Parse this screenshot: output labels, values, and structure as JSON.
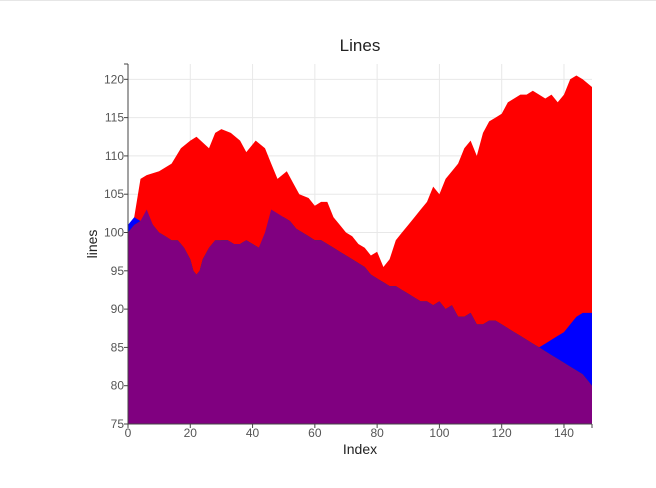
{
  "chart_data": {
    "type": "area",
    "title": "Lines",
    "xlabel": "Index",
    "ylabel": "lines",
    "xlim": [
      0,
      149
    ],
    "ylim": [
      75,
      122
    ],
    "xticks": [
      0,
      20,
      40,
      60,
      80,
      100,
      120,
      140
    ],
    "yticks": [
      75,
      80,
      85,
      90,
      95,
      100,
      105,
      110,
      115,
      120
    ],
    "grid": true,
    "legend": "none",
    "series": [
      {
        "color": "#ff0000",
        "points": [
          [
            0,
            100
          ],
          [
            2,
            102
          ],
          [
            4,
            107
          ],
          [
            6,
            107.5
          ],
          [
            10,
            108
          ],
          [
            14,
            109
          ],
          [
            17,
            111
          ],
          [
            20,
            112
          ],
          [
            22,
            112.5
          ],
          [
            26,
            111
          ],
          [
            28,
            113
          ],
          [
            30,
            113.5
          ],
          [
            33,
            113
          ],
          [
            36,
            112
          ],
          [
            38,
            110.5
          ],
          [
            41,
            112
          ],
          [
            44,
            111
          ],
          [
            46,
            109
          ],
          [
            48,
            107
          ],
          [
            51,
            108
          ],
          [
            53,
            106.5
          ],
          [
            55,
            105
          ],
          [
            58,
            104.5
          ],
          [
            60,
            103.5
          ],
          [
            62,
            104
          ],
          [
            64,
            104
          ],
          [
            66,
            102
          ],
          [
            68,
            101
          ],
          [
            70,
            100
          ],
          [
            72,
            99.5
          ],
          [
            74,
            98.5
          ],
          [
            76,
            98
          ],
          [
            78,
            97
          ],
          [
            80,
            97.5
          ],
          [
            82,
            95.5
          ],
          [
            84,
            96.5
          ],
          [
            86,
            99
          ],
          [
            88,
            100
          ],
          [
            90,
            101
          ],
          [
            92,
            102
          ],
          [
            94,
            103
          ],
          [
            96,
            104
          ],
          [
            98,
            106
          ],
          [
            100,
            105
          ],
          [
            102,
            107
          ],
          [
            104,
            108
          ],
          [
            106,
            109
          ],
          [
            108,
            111
          ],
          [
            110,
            112
          ],
          [
            112,
            110
          ],
          [
            114,
            113
          ],
          [
            116,
            114.5
          ],
          [
            118,
            115
          ],
          [
            120,
            115.5
          ],
          [
            122,
            117
          ],
          [
            124,
            117.5
          ],
          [
            126,
            118
          ],
          [
            128,
            118
          ],
          [
            130,
            118.5
          ],
          [
            132,
            118
          ],
          [
            134,
            117.5
          ],
          [
            136,
            118
          ],
          [
            138,
            117
          ],
          [
            140,
            118
          ],
          [
            142,
            120
          ],
          [
            144,
            120.5
          ],
          [
            146,
            120
          ],
          [
            149,
            119
          ]
        ]
      },
      {
        "color": "#0000ff",
        "points": [
          [
            0,
            101
          ],
          [
            2,
            102
          ],
          [
            4,
            101.5
          ],
          [
            6,
            102
          ],
          [
            8,
            101
          ],
          [
            10,
            99.5
          ],
          [
            12,
            99
          ],
          [
            14,
            98.5
          ],
          [
            16,
            98.5
          ],
          [
            18,
            97.5
          ],
          [
            20,
            96
          ],
          [
            21,
            94.5
          ],
          [
            22,
            94
          ],
          [
            23,
            94.5
          ],
          [
            24,
            96
          ],
          [
            26,
            97.5
          ],
          [
            28,
            98.5
          ],
          [
            30,
            99
          ],
          [
            32,
            99
          ],
          [
            34,
            98.5
          ],
          [
            36,
            98.5
          ],
          [
            38,
            99
          ],
          [
            40,
            98.5
          ],
          [
            42,
            98
          ],
          [
            44,
            99
          ],
          [
            46,
            101
          ],
          [
            48,
            102
          ],
          [
            50,
            102
          ],
          [
            52,
            101.5
          ],
          [
            54,
            100.5
          ],
          [
            56,
            100
          ],
          [
            58,
            99.5
          ],
          [
            60,
            99
          ],
          [
            62,
            99
          ],
          [
            64,
            98.5
          ],
          [
            66,
            98
          ],
          [
            68,
            97.5
          ],
          [
            70,
            97
          ],
          [
            72,
            96.5
          ],
          [
            74,
            96
          ],
          [
            76,
            95.5
          ],
          [
            78,
            94.5
          ],
          [
            80,
            94
          ],
          [
            82,
            93.5
          ],
          [
            84,
            93
          ],
          [
            86,
            93
          ],
          [
            88,
            92.5
          ],
          [
            90,
            92
          ],
          [
            92,
            91.5
          ],
          [
            94,
            91
          ],
          [
            96,
            91
          ],
          [
            98,
            90.5
          ],
          [
            100,
            91
          ],
          [
            102,
            90
          ],
          [
            104,
            90.5
          ],
          [
            106,
            89
          ],
          [
            108,
            89
          ],
          [
            110,
            89.5
          ],
          [
            112,
            88
          ],
          [
            114,
            88
          ],
          [
            116,
            88.5
          ],
          [
            118,
            88.5
          ],
          [
            120,
            88
          ],
          [
            122,
            87.5
          ],
          [
            124,
            87
          ],
          [
            126,
            86.5
          ],
          [
            128,
            86
          ],
          [
            130,
            85.5
          ],
          [
            132,
            85
          ],
          [
            134,
            85.5
          ],
          [
            136,
            86
          ],
          [
            138,
            86.5
          ],
          [
            140,
            87
          ],
          [
            142,
            88
          ],
          [
            144,
            89
          ],
          [
            146,
            89.5
          ],
          [
            149,
            89.5
          ]
        ]
      },
      {
        "color": "#008000",
        "points": [
          [
            0,
            100
          ],
          [
            2,
            101
          ],
          [
            4,
            101.5
          ],
          [
            6,
            102
          ],
          [
            8,
            101
          ],
          [
            10,
            100
          ],
          [
            12,
            99.5
          ],
          [
            14,
            99
          ],
          [
            16,
            99
          ],
          [
            18,
            98
          ],
          [
            20,
            96.5
          ],
          [
            21,
            95
          ],
          [
            22,
            94.5
          ],
          [
            23,
            95
          ],
          [
            24,
            96.5
          ],
          [
            26,
            98
          ],
          [
            28,
            99
          ],
          [
            30,
            99
          ],
          [
            32,
            99
          ],
          [
            34,
            98.5
          ],
          [
            36,
            98.5
          ],
          [
            38,
            99
          ],
          [
            40,
            98.5
          ],
          [
            42,
            98
          ],
          [
            44,
            99
          ],
          [
            46,
            101
          ],
          [
            48,
            102
          ],
          [
            50,
            102
          ],
          [
            52,
            101.5
          ],
          [
            54,
            100.5
          ],
          [
            56,
            100
          ],
          [
            58,
            99.5
          ],
          [
            60,
            99
          ],
          [
            62,
            99
          ],
          [
            64,
            98.5
          ],
          [
            66,
            98
          ],
          [
            68,
            97.5
          ],
          [
            70,
            97
          ],
          [
            72,
            96.5
          ],
          [
            74,
            96
          ],
          [
            76,
            95.5
          ],
          [
            78,
            94.5
          ],
          [
            80,
            94
          ],
          [
            82,
            93.5
          ],
          [
            84,
            93
          ],
          [
            86,
            93
          ],
          [
            88,
            92.5
          ],
          [
            90,
            92
          ],
          [
            92,
            91.5
          ],
          [
            94,
            91
          ],
          [
            96,
            91
          ],
          [
            98,
            90.5
          ],
          [
            100,
            91
          ],
          [
            102,
            90
          ],
          [
            104,
            90.5
          ],
          [
            106,
            89
          ],
          [
            108,
            89
          ],
          [
            110,
            89.5
          ],
          [
            112,
            88
          ],
          [
            114,
            88
          ],
          [
            116,
            88.5
          ],
          [
            118,
            88.5
          ],
          [
            120,
            88
          ],
          [
            122,
            87.5
          ],
          [
            124,
            87
          ],
          [
            126,
            86.5
          ],
          [
            128,
            86
          ],
          [
            130,
            85.5
          ],
          [
            132,
            85
          ],
          [
            134,
            84.5
          ],
          [
            136,
            84
          ],
          [
            138,
            83.5
          ],
          [
            140,
            83
          ],
          [
            142,
            82.5
          ],
          [
            144,
            82
          ],
          [
            146,
            81.5
          ],
          [
            149,
            80
          ]
        ]
      },
      {
        "color": "#800080",
        "points": [
          [
            0,
            100
          ],
          [
            2,
            101
          ],
          [
            4,
            101.5
          ],
          [
            6,
            103
          ],
          [
            8,
            101
          ],
          [
            10,
            100
          ],
          [
            12,
            99.5
          ],
          [
            14,
            99
          ],
          [
            16,
            99
          ],
          [
            18,
            98
          ],
          [
            20,
            96.5
          ],
          [
            21,
            95
          ],
          [
            22,
            94.5
          ],
          [
            23,
            95
          ],
          [
            24,
            96.5
          ],
          [
            26,
            98
          ],
          [
            28,
            99
          ],
          [
            30,
            99
          ],
          [
            32,
            99
          ],
          [
            34,
            98.5
          ],
          [
            36,
            98.5
          ],
          [
            38,
            99
          ],
          [
            40,
            98.5
          ],
          [
            42,
            98
          ],
          [
            44,
            100
          ],
          [
            46,
            103
          ],
          [
            48,
            102.5
          ],
          [
            50,
            102
          ],
          [
            52,
            101.5
          ],
          [
            54,
            100.5
          ],
          [
            56,
            100
          ],
          [
            58,
            99.5
          ],
          [
            60,
            99
          ],
          [
            62,
            99
          ],
          [
            64,
            98.5
          ],
          [
            66,
            98
          ],
          [
            68,
            97.5
          ],
          [
            70,
            97
          ],
          [
            72,
            96.5
          ],
          [
            74,
            96
          ],
          [
            76,
            95.5
          ],
          [
            78,
            94.5
          ],
          [
            80,
            94
          ],
          [
            82,
            93.5
          ],
          [
            84,
            93
          ],
          [
            86,
            93
          ],
          [
            88,
            92.5
          ],
          [
            90,
            92
          ],
          [
            92,
            91.5
          ],
          [
            94,
            91
          ],
          [
            96,
            91
          ],
          [
            98,
            90.5
          ],
          [
            100,
            91
          ],
          [
            102,
            90
          ],
          [
            104,
            90.5
          ],
          [
            106,
            89
          ],
          [
            108,
            89
          ],
          [
            110,
            89.5
          ],
          [
            112,
            88
          ],
          [
            114,
            88
          ],
          [
            116,
            88.5
          ],
          [
            118,
            88.5
          ],
          [
            120,
            88
          ],
          [
            122,
            87.5
          ],
          [
            124,
            87
          ],
          [
            126,
            86.5
          ],
          [
            128,
            86
          ],
          [
            130,
            85.5
          ],
          [
            132,
            85
          ],
          [
            134,
            84.5
          ],
          [
            136,
            84
          ],
          [
            138,
            83.5
          ],
          [
            140,
            83
          ],
          [
            142,
            82.5
          ],
          [
            144,
            82
          ],
          [
            146,
            81.5
          ],
          [
            149,
            80
          ]
        ]
      }
    ]
  }
}
